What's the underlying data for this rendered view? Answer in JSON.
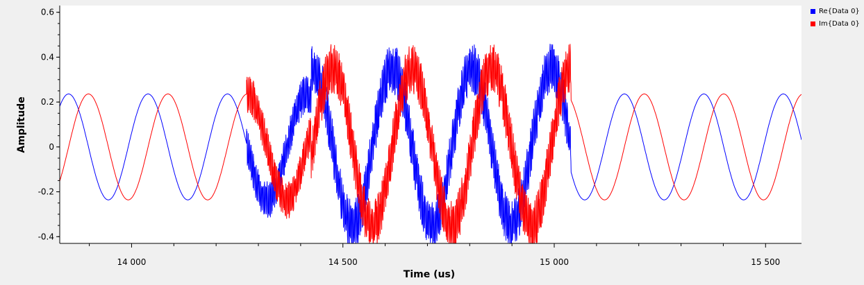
{
  "chart_data": {
    "type": "line",
    "title": "",
    "xlabel": "Time (us)",
    "ylabel": "Amplitude",
    "xlim": [
      13830,
      15585
    ],
    "ylim": [
      -0.43,
      0.63
    ],
    "x_ticks": [
      {
        "value": 14000,
        "label": "14 000"
      },
      {
        "value": 14500,
        "label": "14 500"
      },
      {
        "value": 15000,
        "label": "15 000"
      },
      {
        "value": 15500,
        "label": "15 500"
      }
    ],
    "y_ticks": [
      {
        "value": 0.6,
        "label": "0.6"
      },
      {
        "value": 0.4,
        "label": "0.4"
      },
      {
        "value": 0.2,
        "label": "0.2"
      },
      {
        "value": 0,
        "label": "0"
      },
      {
        "value": -0.2,
        "label": "-0.2"
      },
      {
        "value": -0.4,
        "label": "-0.4"
      }
    ],
    "grid": false,
    "legend_position": "top-right",
    "series": [
      {
        "name": "Re{Data 0}",
        "color": "#0000ff",
        "segments": [
          {
            "x_range": [
              13830,
              14272
            ],
            "form": "sine",
            "amplitude": 0.236,
            "period": 188,
            "peak_at": 13851
          },
          {
            "x_range": [
              14272,
              14425
            ],
            "form": "noisy-sine",
            "amplitude": 0.236,
            "period": 188,
            "peak_at": 13851,
            "noise": 0.06
          },
          {
            "x_range": [
              14425,
              15040
            ],
            "form": "noisy-sine",
            "amplitude": 0.35,
            "period": 188,
            "peak_at": 14617,
            "noise": 0.08
          },
          {
            "x_range": [
              15040,
              15585
            ],
            "form": "sine",
            "amplitude": 0.236,
            "period": 188,
            "peak_at": 15166
          }
        ]
      },
      {
        "name": "Im{Data 0}",
        "color": "#ff0000",
        "segments": [
          {
            "x_range": [
              13830,
              14272
            ],
            "form": "sine",
            "amplitude": 0.236,
            "period": 188,
            "peak_at": 13898
          },
          {
            "x_range": [
              14272,
              14425
            ],
            "form": "noisy-sine",
            "amplitude": 0.236,
            "period": 188,
            "peak_at": 13898,
            "noise": 0.06
          },
          {
            "x_range": [
              14425,
              15040
            ],
            "form": "noisy-sine",
            "amplitude": 0.35,
            "period": 188,
            "peak_at": 14664,
            "noise": 0.08
          },
          {
            "x_range": [
              15040,
              15585
            ],
            "form": "sine",
            "amplitude": 0.236,
            "period": 188,
            "peak_at": 15213
          }
        ]
      }
    ]
  }
}
